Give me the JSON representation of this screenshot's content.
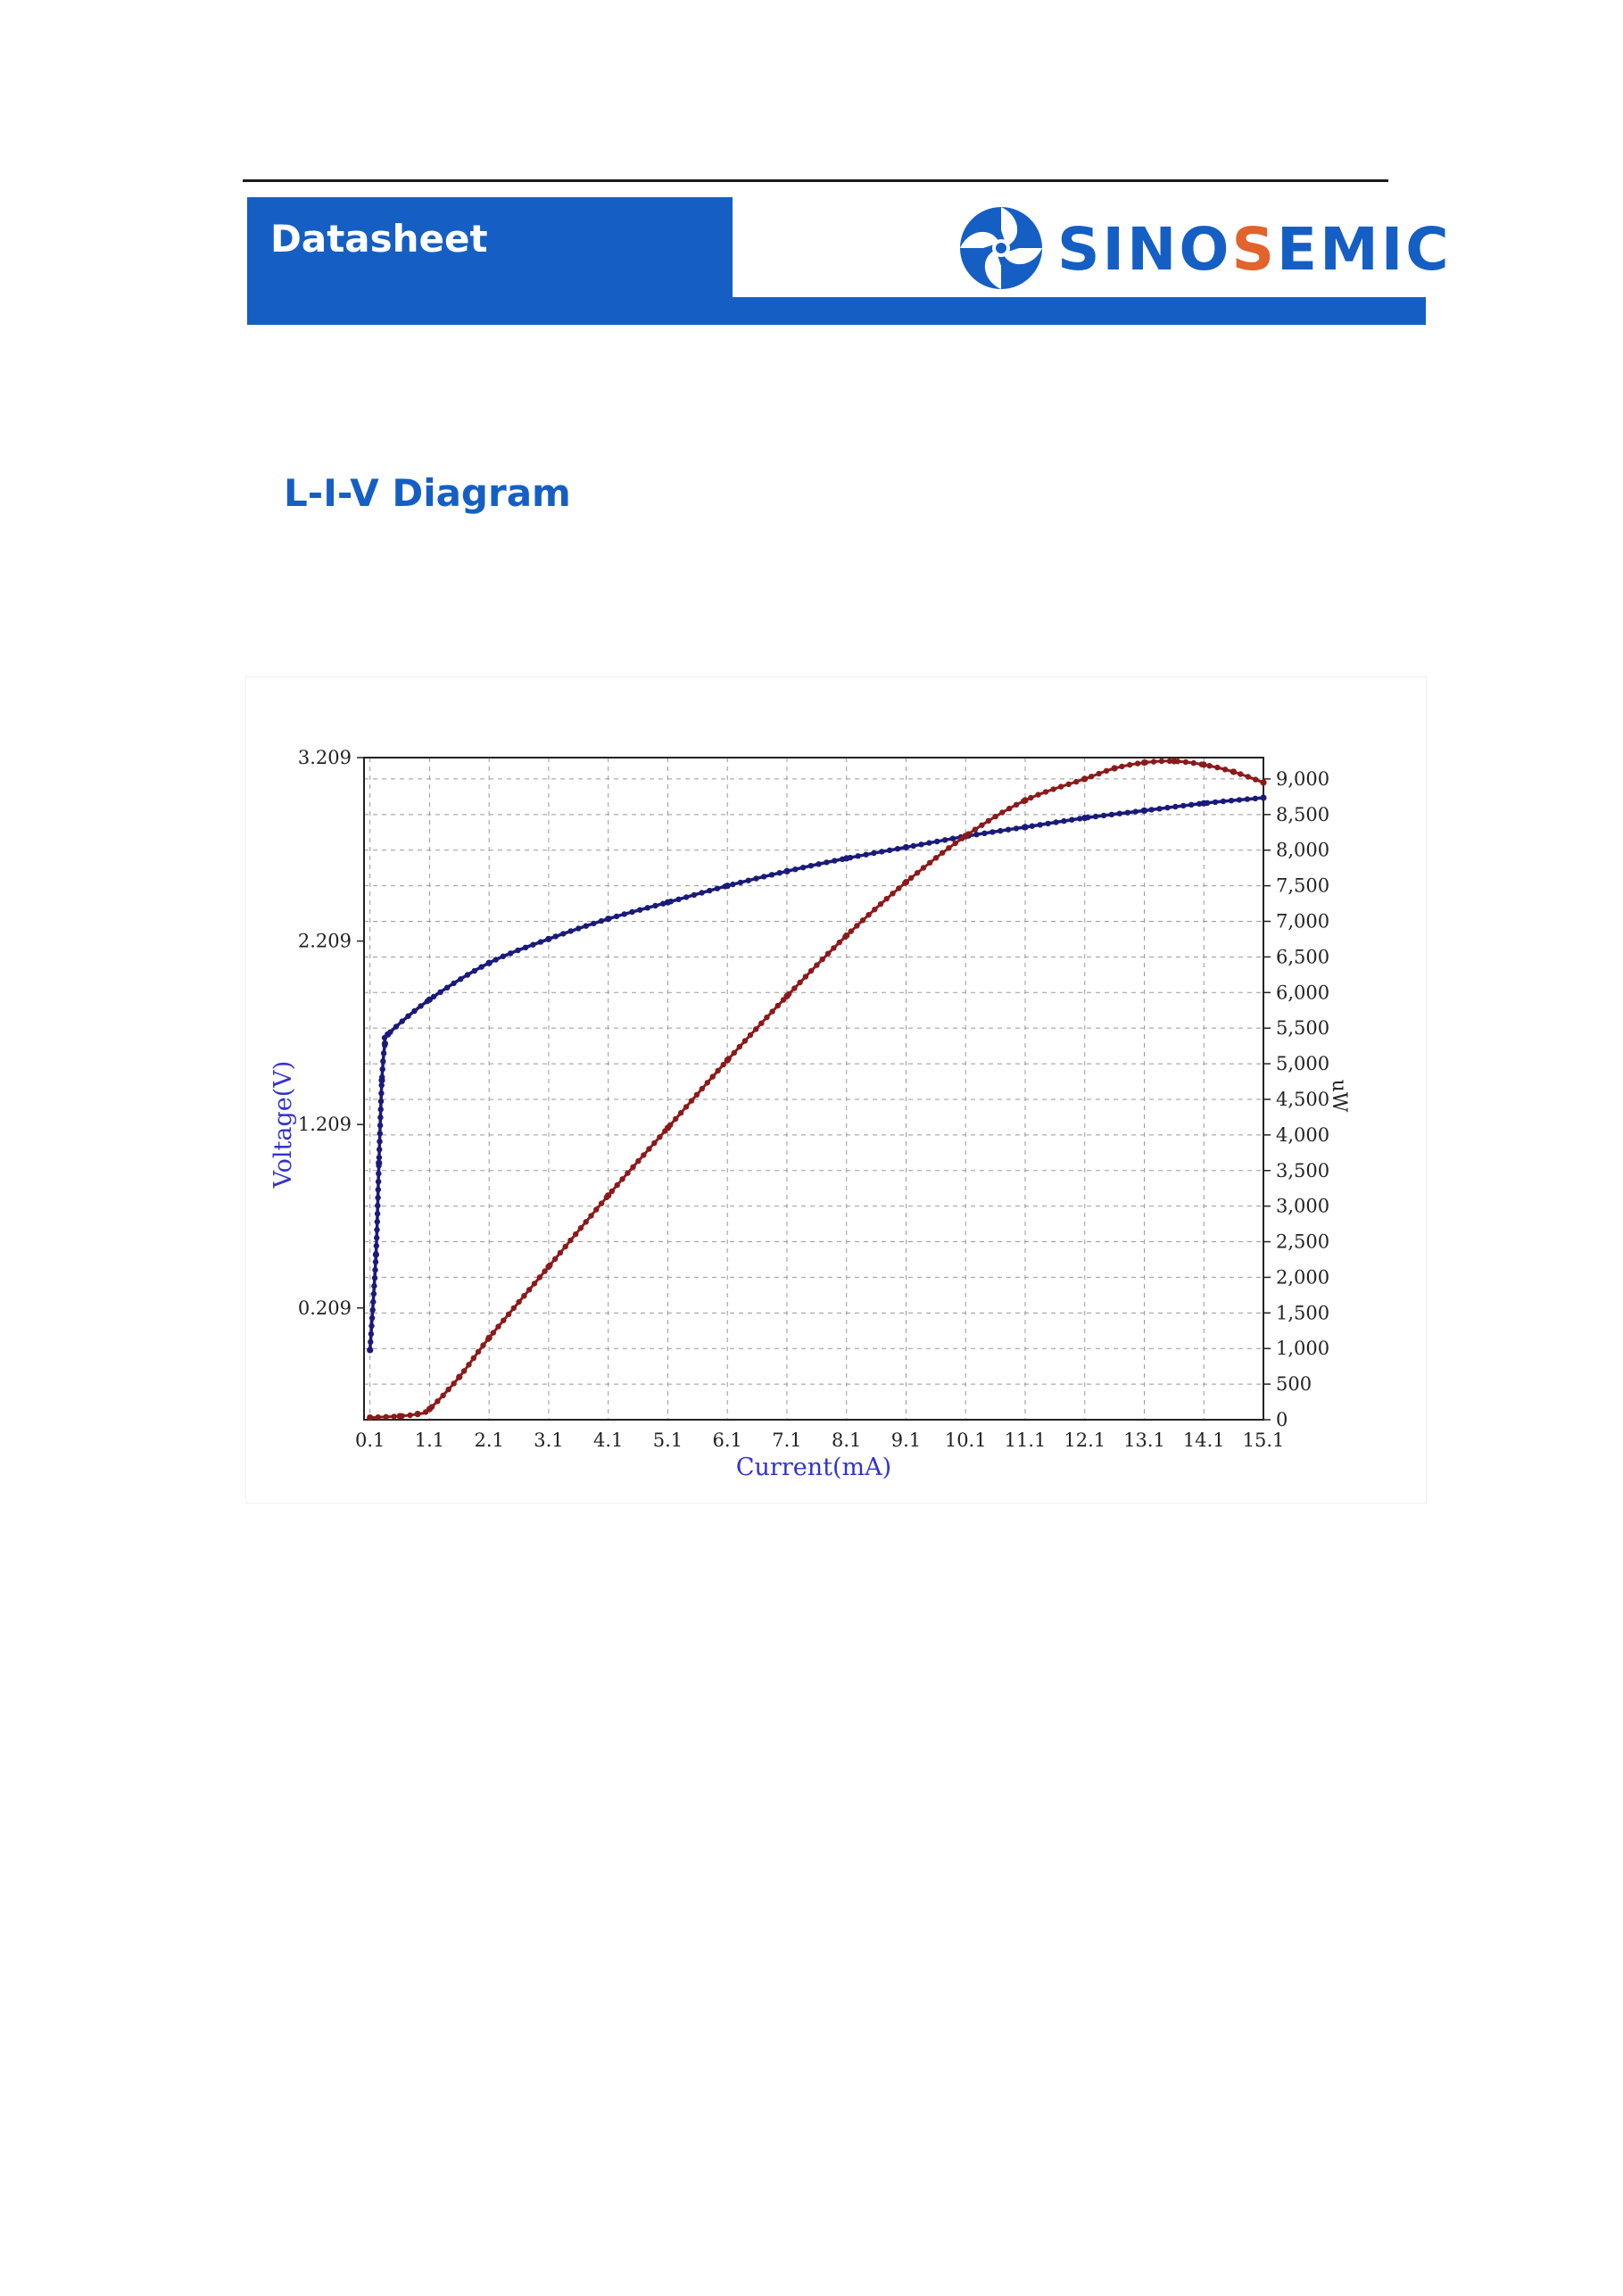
{
  "header": {
    "title": "Datasheet",
    "brand_parts": [
      "SINO",
      "S",
      "EMIC"
    ],
    "brand_color": "#155fc4",
    "brand_accent": "#e2632b",
    "logo_icon": "pinwheel-logo-icon"
  },
  "section": {
    "title": "L-I-V Diagram"
  },
  "chart_data": {
    "type": "line",
    "xlabel": "Current(mA)",
    "ylabel_left": "Voltage(V)",
    "ylabel_right": "uW",
    "xlim": [
      0,
      15.1
    ],
    "ylim_left": [
      -0.4,
      3.209
    ],
    "ylim_right": [
      0,
      9300
    ],
    "x_ticks": [
      "0.1",
      "1.1",
      "2.1",
      "3.1",
      "4.1",
      "5.1",
      "6.1",
      "7.1",
      "8.1",
      "9.1",
      "10.1",
      "11.1",
      "12.1",
      "13.1",
      "14.1",
      "15.1"
    ],
    "y_left_ticks": [
      "0.209",
      "1.209",
      "2.209",
      "3.209"
    ],
    "y_right_ticks": [
      "0",
      "500",
      "1,000",
      "1,500",
      "2,000",
      "2,500",
      "3,000",
      "3,500",
      "4,000",
      "4,500",
      "5,000",
      "5,500",
      "6,000",
      "6,500",
      "7,000",
      "7,500",
      "8,000",
      "8,500",
      "9,000"
    ],
    "grid": true,
    "series": [
      {
        "color": "#1a1a7a",
        "axis": "left",
        "x": [
          0.1,
          0.2,
          0.25,
          0.3,
          0.35,
          0.4,
          1.1,
          2.1,
          3.1,
          4.1,
          5.1,
          6.1,
          7.1,
          8.1,
          9.1,
          10.1,
          11.1,
          12.1,
          13.1,
          14.1,
          15.1
        ],
        "values": [
          -0.02,
          0.5,
          1.0,
          1.45,
          1.65,
          1.7,
          1.89,
          2.09,
          2.22,
          2.33,
          2.42,
          2.51,
          2.59,
          2.66,
          2.72,
          2.78,
          2.83,
          2.88,
          2.92,
          2.96,
          2.99
        ]
      },
      {
        "color": "#8b1a1a",
        "axis": "right",
        "x": [
          0.1,
          0.6,
          0.9,
          1.1,
          1.6,
          2.1,
          3.1,
          4.1,
          5.1,
          6.1,
          7.1,
          8.1,
          9.1,
          10.1,
          11.1,
          12.1,
          12.6,
          13.1,
          13.6,
          14.1,
          14.6,
          15.1
        ],
        "values": [
          30,
          50,
          80,
          150,
          600,
          1150,
          2150,
          3150,
          4100,
          5050,
          5950,
          6800,
          7550,
          8200,
          8700,
          9000,
          9150,
          9230,
          9250,
          9200,
          9100,
          8950
        ]
      }
    ]
  }
}
